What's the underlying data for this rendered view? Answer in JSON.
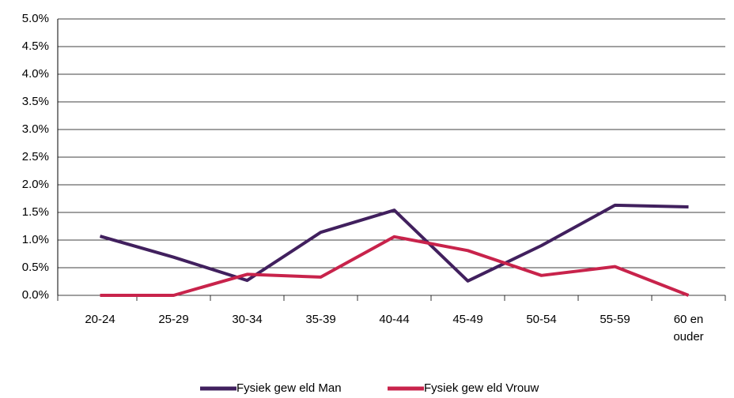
{
  "chart_data": {
    "type": "line",
    "categories": [
      "20-24",
      "25-29",
      "30-34",
      "35-39",
      "40-44",
      "45-49",
      "50-54",
      "55-59",
      "60 en ouder"
    ],
    "series": [
      {
        "name": "Fysiek gew eld Man",
        "color": "#41205e",
        "values": [
          1.07,
          0.69,
          0.27,
          1.14,
          1.54,
          0.26,
          0.9,
          1.63,
          1.6
        ]
      },
      {
        "name": "Fysiek gew eld Vrouw",
        "color": "#c8234b",
        "values": [
          0,
          0,
          0.38,
          0.33,
          1.06,
          0.81,
          0.36,
          0.52,
          0
        ]
      }
    ],
    "ylim": [
      0,
      5
    ],
    "yticks": [
      {
        "value": 0,
        "label": "0.0%"
      },
      {
        "value": 0.5,
        "label": "0.5%"
      },
      {
        "value": 1,
        "label": "1.0%"
      },
      {
        "value": 1.5,
        "label": "1.5%"
      },
      {
        "value": 2,
        "label": "2.0%"
      },
      {
        "value": 2.5,
        "label": "2.5%"
      },
      {
        "value": 3,
        "label": "3.0%"
      },
      {
        "value": 3.5,
        "label": "3.5%"
      },
      {
        "value": 4,
        "label": "4.0%"
      },
      {
        "value": 4.5,
        "label": "4.5%"
      },
      {
        "value": 5,
        "label": "5.0%"
      }
    ],
    "grid": true
  }
}
